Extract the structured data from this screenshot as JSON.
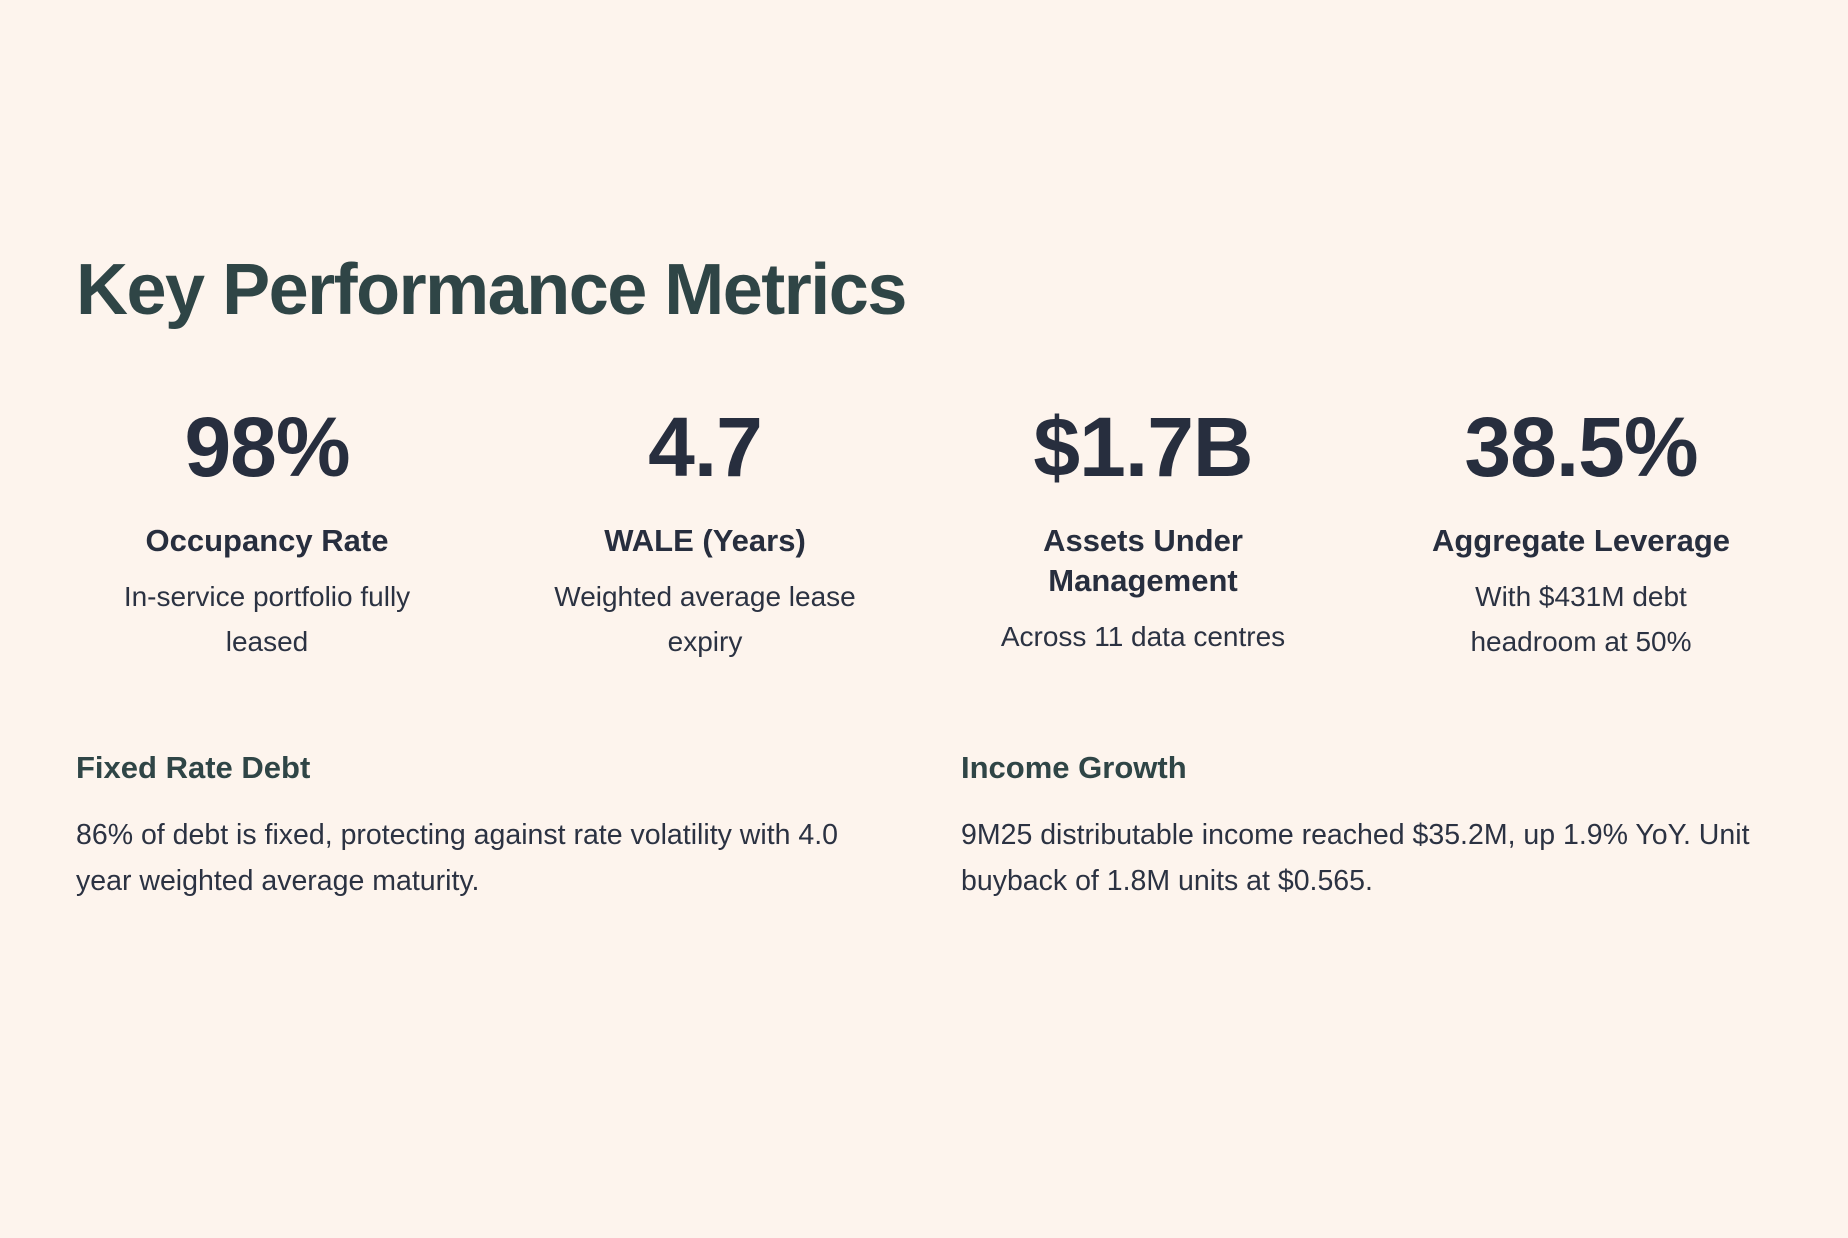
{
  "title": "Key Performance Metrics",
  "metrics": [
    {
      "value": "98%",
      "label": "Occupancy Rate",
      "description": "In-service portfolio fully leased"
    },
    {
      "value": "4.7",
      "label": "WALE (Years)",
      "description": "Weighted average lease expiry"
    },
    {
      "value": "$1.7B",
      "label": "Assets Under Management",
      "description": "Across 11 data centres"
    },
    {
      "value": "38.5%",
      "label": "Aggregate Leverage",
      "description": "With $431M debt headroom at 50%"
    }
  ],
  "sections": [
    {
      "heading": "Fixed Rate Debt",
      "body": "86% of debt is fixed, protecting against rate volatility with 4.0 year weighted average maturity."
    },
    {
      "heading": "Income Growth",
      "body": "9M25 distributable income reached $35.2M, up 1.9% YoY. Unit buyback of 1.8M units at $0.565."
    }
  ],
  "colors": {
    "background": "#FDF4ED",
    "heading_teal": "#2F4546",
    "metric_navy": "#272E3E",
    "body_text": "#2B3242"
  }
}
